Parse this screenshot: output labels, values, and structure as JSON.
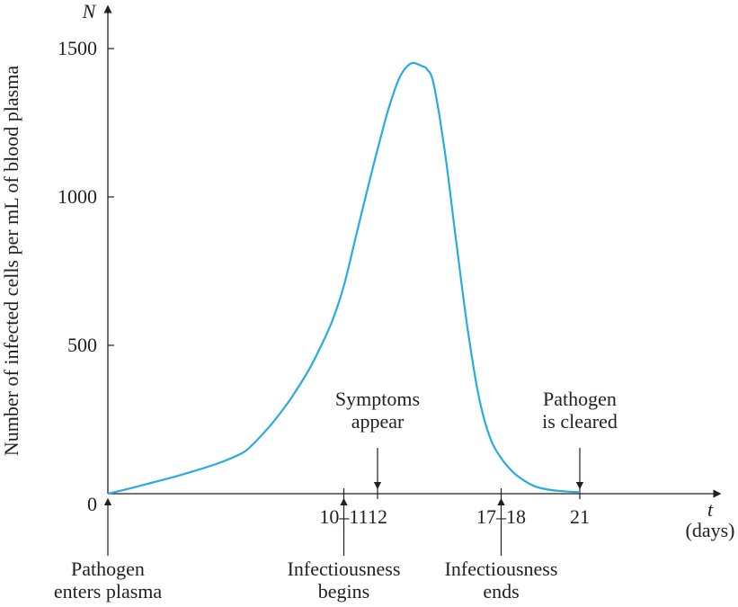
{
  "chart_data": {
    "type": "line",
    "title": "",
    "ylabel": "Number of infected cells per mL of blood plasma",
    "y_var": "N",
    "x_var": "t",
    "x_unit": "(days)",
    "xlim": [
      0,
      23
    ],
    "ylim": [
      0,
      1500
    ],
    "grid": false,
    "y_ticks": [
      {
        "value": 0,
        "label": "0"
      },
      {
        "value": 500,
        "label": "500"
      },
      {
        "value": 1000,
        "label": "1000"
      },
      {
        "value": 1500,
        "label": "1500"
      }
    ],
    "x_ticks": [
      {
        "value": 10.5,
        "label": "10–11"
      },
      {
        "value": 12,
        "label": "12"
      },
      {
        "value": 17.5,
        "label": "17–18"
      },
      {
        "value": 21,
        "label": "21"
      }
    ],
    "series": [
      {
        "color": "#29abe2",
        "x": [
          0,
          1,
          2,
          3,
          4,
          5,
          6,
          6.5,
          7,
          7.5,
          8,
          8.5,
          9,
          9.5,
          10,
          10.5,
          11,
          11.5,
          12,
          12.5,
          13,
          13.5,
          14,
          14.2,
          14.5,
          15,
          15.5,
          16,
          16.5,
          17,
          17.5,
          18,
          18.5,
          19,
          19.5,
          20,
          20.5,
          21
        ],
        "y": [
          0,
          18,
          38,
          58,
          80,
          105,
          138,
          170,
          210,
          255,
          305,
          362,
          425,
          500,
          585,
          700,
          855,
          1010,
          1160,
          1300,
          1405,
          1450,
          1440,
          1430,
          1380,
          1150,
          850,
          560,
          330,
          190,
          120,
          75,
          45,
          25,
          15,
          10,
          7,
          5
        ]
      }
    ],
    "annotations": [
      {
        "id": "pathogen-enters",
        "lines": [
          "Pathogen",
          "enters plasma"
        ],
        "x": 0,
        "side": "below"
      },
      {
        "id": "infectiousness-begins",
        "lines": [
          "Infectiousness",
          "begins"
        ],
        "x": 10.5,
        "side": "below"
      },
      {
        "id": "symptoms-appear",
        "lines": [
          "Symptoms",
          "appear"
        ],
        "x": 12,
        "side": "above"
      },
      {
        "id": "infectiousness-ends",
        "lines": [
          "Infectiousness",
          "ends"
        ],
        "x": 17.5,
        "side": "below"
      },
      {
        "id": "pathogen-cleared",
        "lines": [
          "Pathogen",
          "is cleared"
        ],
        "x": 21,
        "side": "above"
      }
    ]
  }
}
